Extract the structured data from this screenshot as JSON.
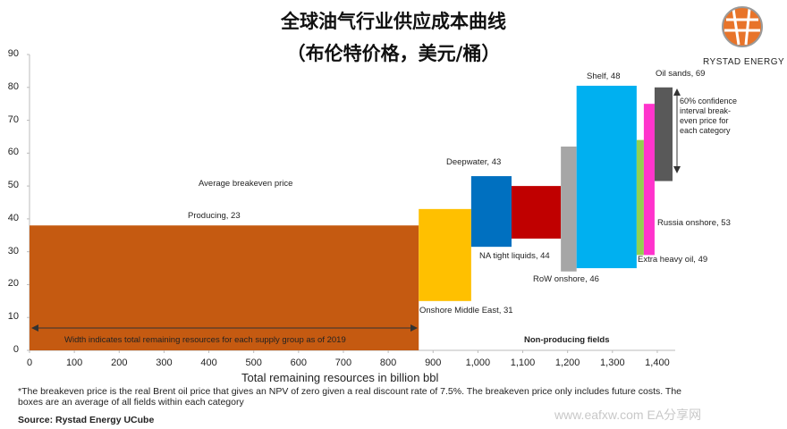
{
  "chart_data": {
    "type": "supply-curve",
    "title": "全球油气行业供应成本曲线",
    "subtitle": "（布伦特价格，美元/桶）",
    "logo": "RYSTAD ENERGY",
    "x_label": "Total remaining resources in billion bbl",
    "annotations": {
      "average": "Average breakeven price",
      "width_note": "Width indicates total remaining resources for each supply group as of 2019",
      "non_producing": "Non-producing fields",
      "confidence": "60% confidence interval break-even price for each category"
    },
    "footnote": "*The breakeven price is the real Brent oil price that gives an NPV of zero given a real discount rate of 7.5%. The breakeven price only includes future costs. The boxes are an average of all fields within each category",
    "source": "Source: Rystad Energy UCube",
    "watermark": "www.eafxw.com  EA分享网",
    "xlim": [
      0,
      1440
    ],
    "ylim": [
      0,
      90
    ],
    "xticks": [
      0,
      100,
      200,
      300,
      400,
      500,
      600,
      700,
      800,
      900,
      {
        "value": 1000,
        "label": "1,000"
      },
      {
        "value": 1100,
        "label": "1,100"
      },
      {
        "value": 1200,
        "label": "1,200"
      },
      {
        "value": 1300,
        "label": "1,300"
      },
      {
        "value": 1400,
        "label": "1,400"
      }
    ],
    "yticks": [
      0,
      10,
      20,
      30,
      40,
      50,
      60,
      70,
      80,
      90
    ],
    "series": [
      {
        "name": "Producing, 23",
        "color": "#c55a11",
        "x": [
          0,
          868
        ],
        "values": [
          0,
          38
        ]
      },
      {
        "name": "Onshore Middle East, 31",
        "color": "#ffc000",
        "x": [
          868,
          985
        ],
        "values": [
          15,
          43
        ]
      },
      {
        "name": "Deepwater, 43",
        "color": "#0070c0",
        "x": [
          985,
          1075
        ],
        "values": [
          31.5,
          53
        ]
      },
      {
        "name": "NA tight liquids, 44",
        "color": "#c00000",
        "x": [
          1075,
          1185
        ],
        "values": [
          34,
          50
        ]
      },
      {
        "name": "RoW onshore, 46",
        "color": "#a6a6a6",
        "x": [
          1185,
          1220
        ],
        "values": [
          24,
          62
        ]
      },
      {
        "name": "Shelf, 48",
        "color": "#00b0f0",
        "x": [
          1220,
          1354
        ],
        "values": [
          25,
          80.5
        ]
      },
      {
        "name": "Extra heavy oil, 49",
        "color": "#92d050",
        "x": [
          1354,
          1370
        ],
        "values": [
          29,
          64
        ]
      },
      {
        "name": "Russia onshore, 53",
        "color": "#ff33cc",
        "x": [
          1370,
          1394
        ],
        "values": [
          29,
          75
        ]
      },
      {
        "name": "Oil sands, 69",
        "color": "#595959",
        "x": [
          1394,
          1434
        ],
        "values": [
          51.5,
          80
        ]
      }
    ]
  }
}
